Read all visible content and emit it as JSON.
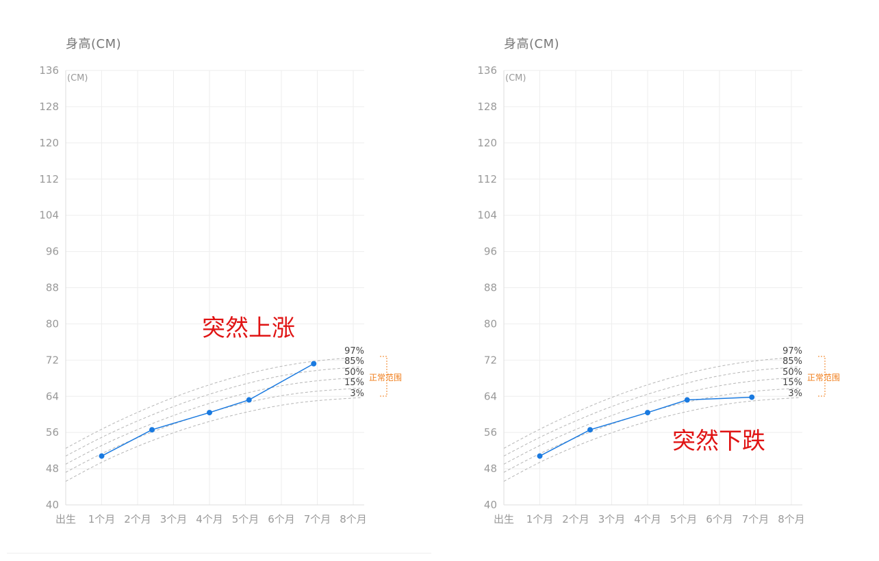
{
  "charts": [
    {
      "id": "left",
      "ylabel": "身高(CM)",
      "unit": "(CM)",
      "annotation": "突然上涨",
      "range_label": "正常范围"
    },
    {
      "id": "right",
      "ylabel": "身高(CM)",
      "unit": "(CM)",
      "annotation": "突然下跌",
      "range_label": "正常范围"
    }
  ],
  "chart_data": [
    {
      "type": "line",
      "ylabel": "身高(CM)",
      "unit": "(CM)",
      "annotation": "突然上涨",
      "range_label": "正常范围",
      "categories": [
        "出生",
        "1个月",
        "2个月",
        "3个月",
        "4个月",
        "5个月",
        "6个月",
        "7个月",
        "8个月"
      ],
      "xlim": [
        0,
        8.2
      ],
      "ylim": [
        40,
        136
      ],
      "yticks": [
        40,
        48,
        56,
        64,
        72,
        80,
        88,
        96,
        104,
        112,
        120,
        128,
        136
      ],
      "grid": true,
      "percentiles": [
        {
          "label": "97%",
          "x": [
            0,
            1,
            2,
            3,
            4,
            5,
            6,
            7,
            8.2
          ],
          "y": [
            52.5,
            56.8,
            60.5,
            63.8,
            66.6,
            68.9,
            70.7,
            71.9,
            72.7
          ]
        },
        {
          "label": "85%",
          "x": [
            0,
            1,
            2,
            3,
            4,
            5,
            6,
            7,
            8.2
          ],
          "y": [
            50.8,
            55.0,
            58.6,
            61.8,
            64.5,
            66.8,
            68.6,
            69.8,
            70.5
          ]
        },
        {
          "label": "50%",
          "x": [
            0,
            1,
            2,
            3,
            4,
            5,
            6,
            7,
            8.2
          ],
          "y": [
            49.0,
            53.2,
            56.7,
            59.8,
            62.5,
            64.7,
            66.4,
            67.5,
            68.2
          ]
        },
        {
          "label": "15%",
          "x": [
            0,
            1,
            2,
            3,
            4,
            5,
            6,
            7,
            8.2
          ],
          "y": [
            47.2,
            51.4,
            54.9,
            57.9,
            60.5,
            62.6,
            64.2,
            65.2,
            65.8
          ]
        },
        {
          "label": "3%",
          "x": [
            0,
            1,
            2,
            3,
            4,
            5,
            6,
            7,
            8.2
          ],
          "y": [
            45.2,
            49.5,
            53.0,
            56.0,
            58.5,
            60.5,
            62.1,
            63.1,
            63.7
          ]
        }
      ],
      "series": [
        {
          "x": [
            1.0,
            2.4,
            4.0,
            5.1,
            6.9
          ],
          "y": [
            50.8,
            56.6,
            60.4,
            63.2,
            71.2
          ]
        }
      ]
    },
    {
      "type": "line",
      "ylabel": "身高(CM)",
      "unit": "(CM)",
      "annotation": "突然下跌",
      "range_label": "正常范围",
      "categories": [
        "出生",
        "1个月",
        "2个月",
        "3个月",
        "4个月",
        "5个月",
        "6个月",
        "7个月",
        "8个月"
      ],
      "xlim": [
        0,
        8.2
      ],
      "ylim": [
        40,
        136
      ],
      "yticks": [
        40,
        48,
        56,
        64,
        72,
        80,
        88,
        96,
        104,
        112,
        120,
        128,
        136
      ],
      "grid": true,
      "percentiles": [
        {
          "label": "97%",
          "x": [
            0,
            1,
            2,
            3,
            4,
            5,
            6,
            7,
            8.2
          ],
          "y": [
            52.5,
            56.8,
            60.5,
            63.8,
            66.6,
            68.9,
            70.7,
            71.9,
            72.7
          ]
        },
        {
          "label": "85%",
          "x": [
            0,
            1,
            2,
            3,
            4,
            5,
            6,
            7,
            8.2
          ],
          "y": [
            50.8,
            55.0,
            58.6,
            61.8,
            64.5,
            66.8,
            68.6,
            69.8,
            70.5
          ]
        },
        {
          "label": "50%",
          "x": [
            0,
            1,
            2,
            3,
            4,
            5,
            6,
            7,
            8.2
          ],
          "y": [
            49.0,
            53.2,
            56.7,
            59.8,
            62.5,
            64.7,
            66.4,
            67.5,
            68.2
          ]
        },
        {
          "label": "15%",
          "x": [
            0,
            1,
            2,
            3,
            4,
            5,
            6,
            7,
            8.2
          ],
          "y": [
            47.2,
            51.4,
            54.9,
            57.9,
            60.5,
            62.6,
            64.2,
            65.2,
            65.8
          ]
        },
        {
          "label": "3%",
          "x": [
            0,
            1,
            2,
            3,
            4,
            5,
            6,
            7,
            8.2
          ],
          "y": [
            45.2,
            49.5,
            53.0,
            56.0,
            58.5,
            60.5,
            62.1,
            63.1,
            63.7
          ]
        }
      ],
      "series": [
        {
          "x": [
            1.0,
            2.4,
            4.0,
            5.1,
            6.9
          ],
          "y": [
            50.8,
            56.6,
            60.4,
            63.2,
            63.8
          ]
        }
      ]
    }
  ],
  "colors": {
    "line": "#1a7ae0",
    "point": "#1a7ae0",
    "percentile": "#b5b5b5",
    "grid": "#eeeeee",
    "annotation": "#e01414",
    "range": "#f07d1a"
  }
}
